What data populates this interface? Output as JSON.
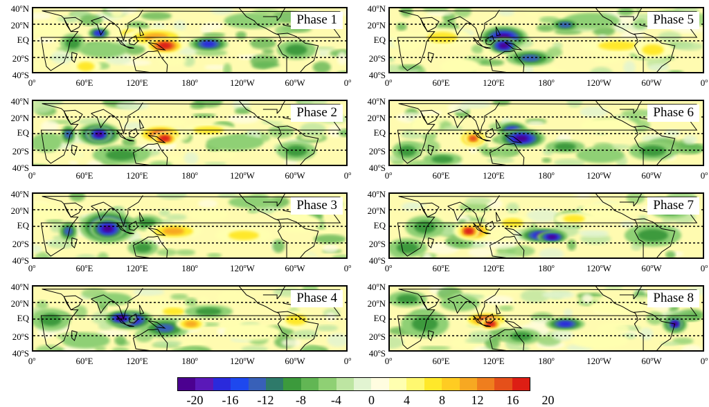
{
  "panels": [
    {
      "label": "Phase 1"
    },
    {
      "label": "Phase 2"
    },
    {
      "label": "Phase 3"
    },
    {
      "label": "Phase 4"
    },
    {
      "label": "Phase 5"
    },
    {
      "label": "Phase 6"
    },
    {
      "label": "Phase 7"
    },
    {
      "label": "Phase 8"
    }
  ],
  "y_ticks": [
    {
      "v": "40",
      "s": "o",
      "h": "N"
    },
    {
      "v": "20",
      "s": "o",
      "h": "N"
    },
    {
      "v": "EQ",
      "s": "",
      "h": ""
    },
    {
      "v": "20",
      "s": "o",
      "h": "S"
    },
    {
      "v": "40",
      "s": "o",
      "h": "S"
    }
  ],
  "x_ticks": [
    {
      "v": "0",
      "s": "o",
      "h": ""
    },
    {
      "v": "60",
      "s": "o",
      "h": "E"
    },
    {
      "v": "120",
      "s": "o",
      "h": "E"
    },
    {
      "v": "180",
      "s": "o",
      "h": ""
    },
    {
      "v": "120",
      "s": "o",
      "h": "W"
    },
    {
      "v": "60",
      "s": "o",
      "h": "W"
    },
    {
      "v": "0",
      "s": "o",
      "h": ""
    }
  ],
  "colorbar": {
    "tick_labels": [
      "-20",
      "-16",
      "-12",
      "-8",
      "-4",
      "0",
      "4",
      "8",
      "12",
      "16",
      "20"
    ],
    "colors": [
      "#4b0090",
      "#5a18b8",
      "#2a2adc",
      "#1e48ee",
      "#3860b8",
      "#2e7a6a",
      "#3c9a3c",
      "#62b654",
      "#8fd074",
      "#bde5a2",
      "#e2f4d2",
      "#fffde0",
      "#ffffb0",
      "#fff870",
      "#ffe82a",
      "#ffcc22",
      "#f7a822",
      "#ef7e1e",
      "#e5501a",
      "#dd1e14"
    ]
  },
  "dashed_latitudes": [
    "20N",
    "EQ",
    "20S"
  ]
}
